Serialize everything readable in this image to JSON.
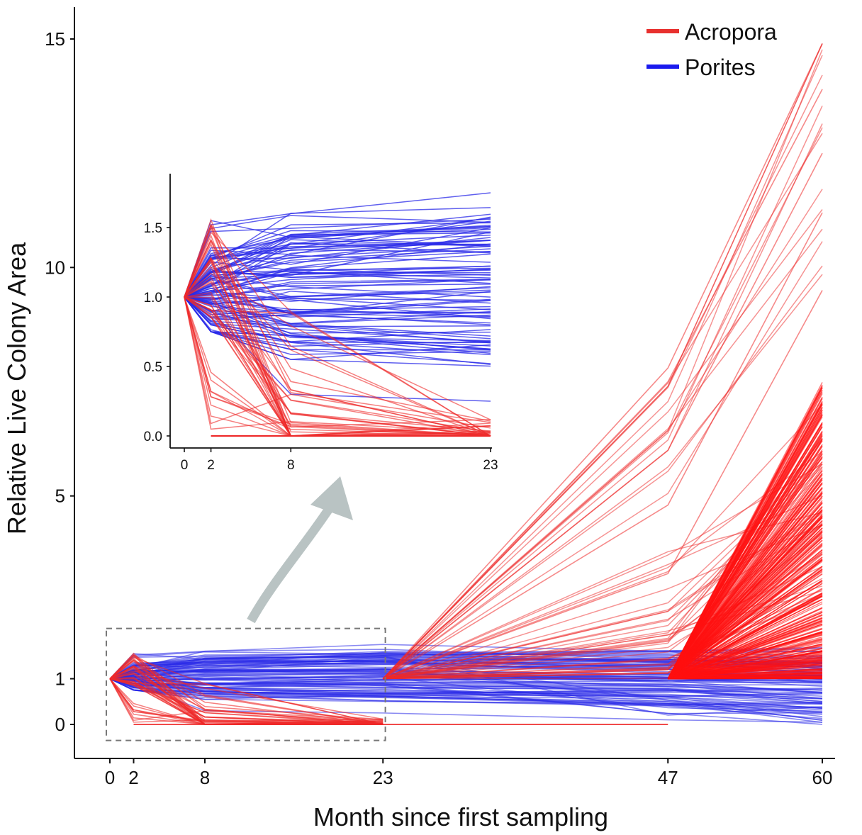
{
  "chart_data": {
    "type": "line",
    "main": {
      "xlabel": "Month since first sampling",
      "ylabel": "Relative Live Colony Area",
      "x_ticks": [
        0,
        2,
        8,
        23,
        47,
        60
      ],
      "y_ticks": [
        0,
        1,
        5,
        10,
        15
      ],
      "xlim": [
        -2,
        61
      ],
      "ylim": [
        -0.75,
        15.5
      ],
      "zoom_box": {
        "x": [
          -0.3,
          23.2
        ],
        "y": [
          -0.35,
          2.1
        ]
      }
    },
    "inset": {
      "x_ticks": [
        0,
        2,
        8,
        23
      ],
      "y_ticks": [
        "0.0",
        "0.5",
        "1.0",
        "1.5"
      ],
      "xlim": [
        -1,
        23
      ],
      "ylim": [
        -0.08,
        1.9
      ]
    },
    "legend": {
      "position": "top-right",
      "entries": [
        {
          "name": "Acropora",
          "color": "#e8302e"
        },
        {
          "name": "Porites",
          "color": "#1a1aee"
        }
      ]
    },
    "series": [
      {
        "name": "Acropora",
        "color": "#ee2a2a",
        "summary": "colonies starting at 1.0; early partial mortality or death, survivors grow strongly by month 60",
        "x": [
          0,
          2,
          8,
          23,
          47,
          60
        ],
        "representative_values": [
          [
            1,
            1.58,
            0.2,
            1.0,
            7.8,
            14.9
          ],
          [
            1,
            1.45,
            0.7,
            1.0,
            7.5,
            13.9
          ],
          [
            1,
            1.2,
            0.4,
            1.0,
            6.0,
            12.5
          ],
          [
            1,
            1.1,
            0.1,
            1.0,
            4.8,
            11.2
          ],
          [
            1,
            0.6,
            0.0,
            1.0,
            3.3,
            9.5
          ],
          [
            1,
            0.0,
            0.0,
            0.0,
            0.0,
            null
          ]
        ]
      },
      {
        "name": "Porites",
        "color": "#2a2ae8",
        "summary": "colonies starting at 1.0; values stay mostly between 0.4 and 1.8",
        "x": [
          0,
          2,
          8,
          23,
          47,
          60
        ],
        "representative_values": [
          [
            1,
            1.52,
            1.6,
            1.75,
            1.6,
            1.2
          ],
          [
            1,
            1.2,
            1.3,
            1.25,
            1.3,
            1.1
          ],
          [
            1,
            0.95,
            1.0,
            1.05,
            1.0,
            0.95
          ],
          [
            1,
            0.85,
            0.8,
            0.7,
            0.6,
            0.45
          ],
          [
            1,
            0.9,
            0.3,
            0.25,
            0.1,
            0.05
          ]
        ]
      }
    ]
  }
}
